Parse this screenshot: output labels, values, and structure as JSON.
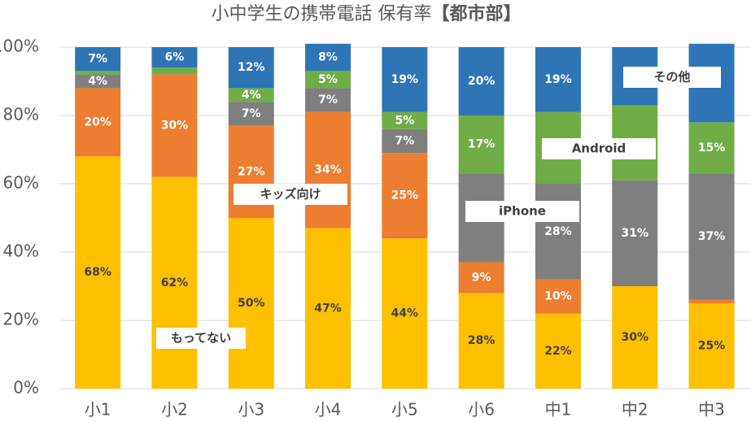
{
  "chart_data": {
    "type": "stacked_bar",
    "title": "小中学生の携帯電話 保有率",
    "title_region": "【都市部】",
    "categories": [
      "小1",
      "小2",
      "小3",
      "小4",
      "小5",
      "小6",
      "中1",
      "中2",
      "中3"
    ],
    "series": [
      {
        "name": "もってない",
        "color": "#FFC000",
        "values": [
          68,
          62,
          50,
          47,
          44,
          28,
          22,
          30,
          25
        ],
        "value_labels": [
          "68%",
          "62%",
          "50%",
          "47%",
          "44%",
          "28%",
          "22%",
          "30%",
          "25%"
        ]
      },
      {
        "name": "キッズ向け",
        "color": "#ED7D31",
        "values": [
          20,
          30,
          27,
          34,
          25,
          9,
          10,
          0,
          1
        ],
        "value_labels": [
          "20%",
          "30%",
          "27%",
          "34%",
          "25%",
          "9%",
          "10%",
          null,
          null
        ]
      },
      {
        "name": "iPhone",
        "color": "#7F7F7F",
        "values": [
          4,
          0,
          7,
          7,
          7,
          26,
          28,
          31,
          37
        ],
        "value_labels": [
          "4%",
          null,
          "7%",
          "7%",
          "7%",
          null,
          "28%",
          "31%",
          "37%"
        ]
      },
      {
        "name": "Android",
        "color": "#70AD47",
        "values": [
          1,
          2,
          4,
          5,
          5,
          17,
          21,
          22,
          15
        ],
        "value_labels": [
          null,
          null,
          "4%",
          "5%",
          "5%",
          "17%",
          null,
          null,
          "15%"
        ]
      },
      {
        "name": "その他",
        "color": "#2E75B6",
        "values": [
          7,
          6,
          12,
          8,
          19,
          20,
          19,
          17,
          23
        ],
        "value_labels": [
          "7%",
          "6%",
          "12%",
          "8%",
          "19%",
          "20%",
          "19%",
          null,
          null
        ]
      }
    ],
    "ylim": [
      0,
      100
    ],
    "yticks": [
      {
        "value": 0,
        "label": "0%"
      },
      {
        "value": 20,
        "label": "20%"
      },
      {
        "value": 40,
        "label": "40%"
      },
      {
        "value": 60,
        "label": "60%"
      },
      {
        "value": 80,
        "label": "80%"
      },
      {
        "value": 100,
        "label": "100%"
      }
    ],
    "grid": true
  }
}
